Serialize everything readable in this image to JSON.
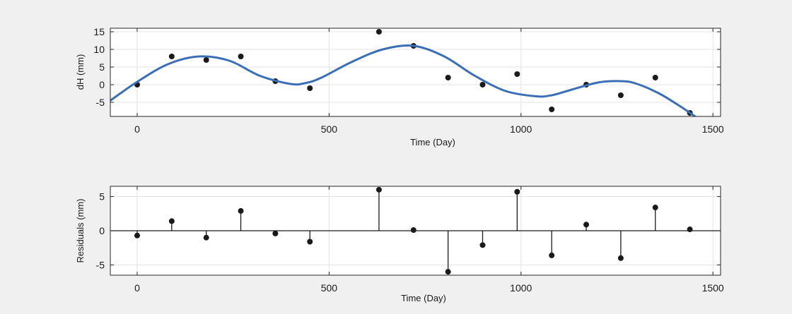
{
  "colors": {
    "panel_background": "#f0f0f0",
    "plot_background": "#ffffff",
    "grid": "#e3e3e3",
    "axis": "#262626",
    "fit_line": "#3a6fb8",
    "marker": "#1a1a1a"
  },
  "chart_data": [
    {
      "type": "scatter",
      "title": "",
      "xlabel": "Time (Day)",
      "ylabel": "dH (mm)",
      "xlim": [
        -70,
        1520
      ],
      "ylim": [
        -9,
        16
      ],
      "xticks": [
        0,
        500,
        1000,
        1500
      ],
      "yticks": [
        -5,
        0,
        5,
        10,
        15
      ],
      "grid": true,
      "series": [
        {
          "kind": "points",
          "x": [
            0,
            90,
            180,
            270,
            360,
            450,
            630,
            720,
            810,
            900,
            990,
            1080,
            1170,
            1260,
            1350,
            1440
          ],
          "y": [
            0,
            8,
            7,
            8,
            1,
            -1,
            15,
            11,
            2,
            0,
            3,
            -7,
            0,
            -3,
            2,
            -8
          ]
        },
        {
          "kind": "fit_line",
          "x": [
            -70,
            0,
            80,
            160,
            240,
            320,
            400,
            440,
            480,
            560,
            640,
            720,
            800,
            880,
            960,
            1040,
            1080,
            1120,
            1200,
            1260,
            1300,
            1360,
            1420,
            1460
          ],
          "y": [
            -4.5,
            0.8,
            5.8,
            8.0,
            6.8,
            2.5,
            0.2,
            0.5,
            2.0,
            6.5,
            10.0,
            11.0,
            8.0,
            2.5,
            -1.8,
            -3.3,
            -3.0,
            -1.8,
            0.6,
            1.0,
            0.3,
            -2.5,
            -6.5,
            -9.5
          ]
        }
      ]
    },
    {
      "type": "stem",
      "title": "",
      "xlabel": "Time (Day)",
      "ylabel": "Residuals (mm)",
      "xlim": [
        -70,
        1520
      ],
      "ylim": [
        -6.5,
        6.5
      ],
      "xticks": [
        0,
        500,
        1000,
        1500
      ],
      "yticks": [
        -5,
        0,
        5
      ],
      "grid": true,
      "series": [
        {
          "kind": "stems",
          "x": [
            0,
            90,
            180,
            270,
            360,
            450,
            630,
            720,
            810,
            900,
            990,
            1080,
            1170,
            1260,
            1350,
            1440
          ],
          "y": [
            -0.7,
            1.4,
            -1.0,
            2.9,
            -0.4,
            -1.6,
            6.0,
            0.1,
            -6.0,
            -2.1,
            5.7,
            -3.6,
            0.9,
            -4.0,
            3.4,
            0.2
          ]
        }
      ]
    }
  ]
}
